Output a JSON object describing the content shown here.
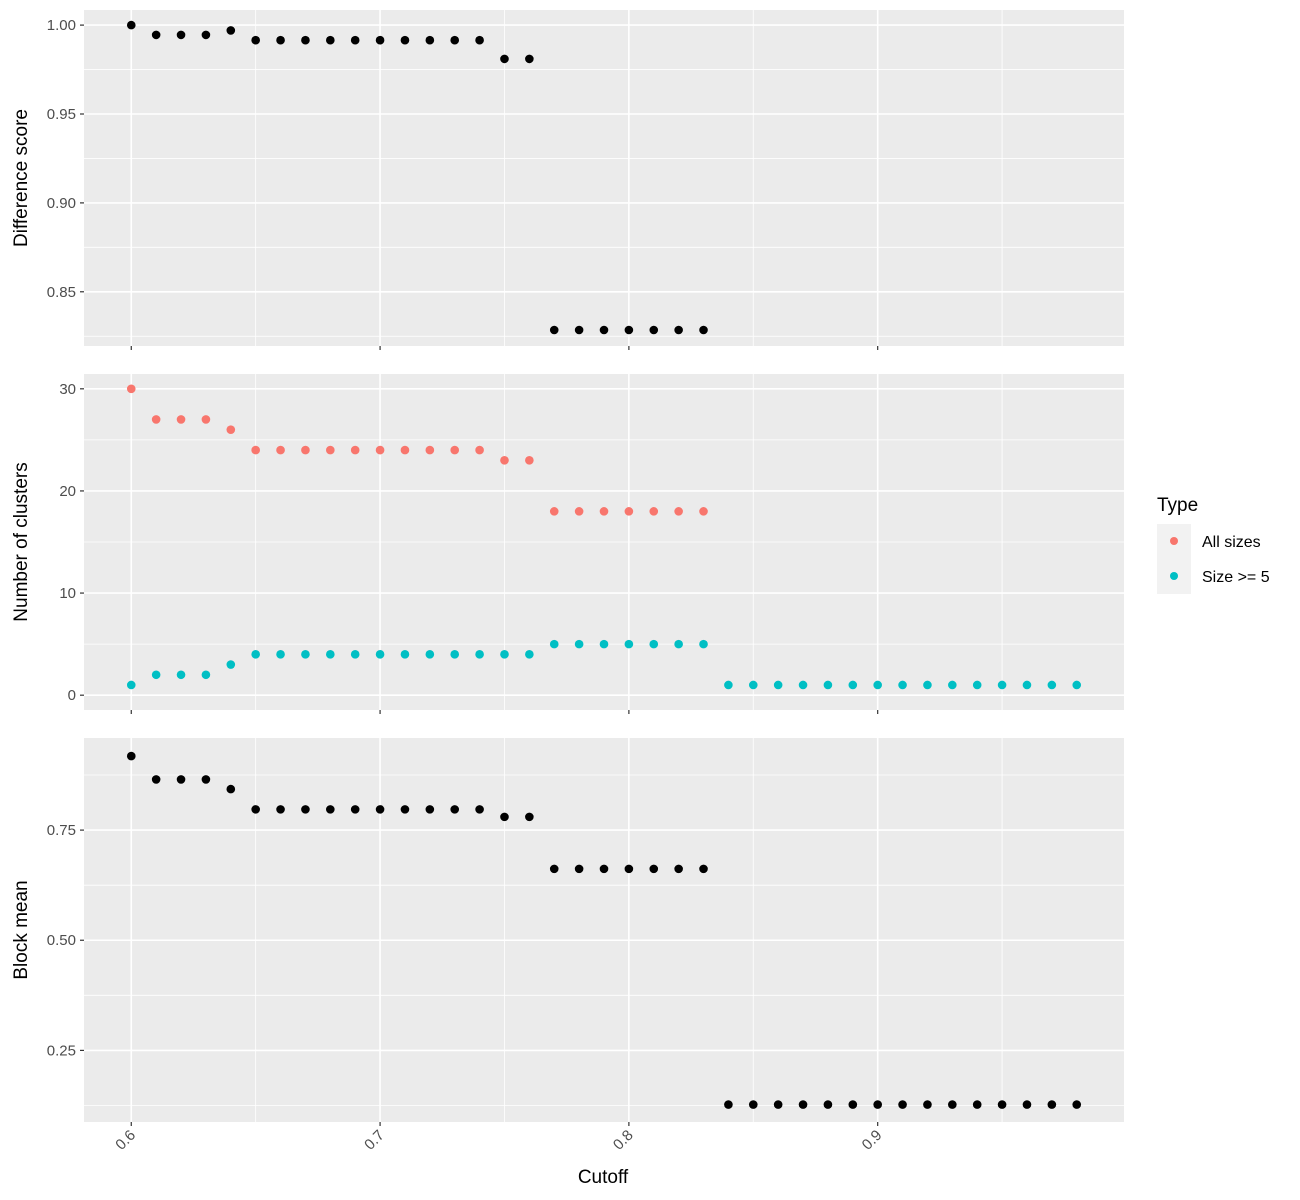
{
  "chart_data": {
    "type": "scatter",
    "xlabel": "Cutoff",
    "x_ticks": [
      0.6,
      0.7,
      0.8,
      0.9
    ],
    "x_tick_labels": [
      "0.6",
      "0.7",
      "0.8",
      "0.9"
    ],
    "xlim": [
      0.581,
      0.999
    ],
    "grid": true,
    "legend": {
      "title": "Type",
      "position": "right",
      "entries": [
        {
          "label": "All sizes",
          "color": "#F8766D"
        },
        {
          "label": "Size >= 5",
          "color": "#00BFC4"
        }
      ]
    },
    "colors": {
      "panel_bg": "#EBEBEB",
      "grid": "#FFFFFF",
      "point_default": "#000000"
    },
    "panels": [
      {
        "ylabel": "Difference score",
        "ylim": [
          0.8195,
          1.0085
        ],
        "y_ticks": [
          0.85,
          0.9,
          0.95,
          1.0
        ],
        "y_tick_labels": [
          "0.85",
          "0.90",
          "0.95",
          "1.00"
        ],
        "series": [
          {
            "color": "#000000",
            "x": [
              0.6,
              0.61,
              0.62,
              0.63,
              0.64,
              0.65,
              0.66,
              0.67,
              0.68,
              0.69,
              0.7,
              0.71,
              0.72,
              0.73,
              0.74,
              0.75,
              0.76,
              0.77,
              0.78,
              0.79,
              0.8,
              0.81,
              0.82,
              0.83
            ],
            "y": [
              1.0,
              0.9945,
              0.9945,
              0.9945,
              0.997,
              0.9915,
              0.9915,
              0.9915,
              0.9915,
              0.9915,
              0.9915,
              0.9915,
              0.9915,
              0.9915,
              0.9915,
              0.981,
              0.981,
              0.8285,
              0.8285,
              0.8285,
              0.8285,
              0.8285,
              0.8285,
              0.8285
            ]
          }
        ]
      },
      {
        "ylabel": "Number of clusters",
        "ylim": [
          -1.45,
          31.45
        ],
        "y_ticks": [
          0,
          10,
          20,
          30
        ],
        "y_tick_labels": [
          "0",
          "10",
          "20",
          "30"
        ],
        "series": [
          {
            "name": "All sizes",
            "color": "#F8766D",
            "x": [
              0.6,
              0.61,
              0.62,
              0.63,
              0.64,
              0.65,
              0.66,
              0.67,
              0.68,
              0.69,
              0.7,
              0.71,
              0.72,
              0.73,
              0.74,
              0.75,
              0.76,
              0.77,
              0.78,
              0.79,
              0.8,
              0.81,
              0.82,
              0.83
            ],
            "y": [
              30,
              27,
              27,
              27,
              26,
              24,
              24,
              24,
              24,
              24,
              24,
              24,
              24,
              24,
              24,
              23,
              23,
              18,
              18,
              18,
              18,
              18,
              18,
              18
            ]
          },
          {
            "name": "Size >= 5",
            "color": "#00BFC4",
            "x": [
              0.6,
              0.61,
              0.62,
              0.63,
              0.64,
              0.65,
              0.66,
              0.67,
              0.68,
              0.69,
              0.7,
              0.71,
              0.72,
              0.73,
              0.74,
              0.75,
              0.76,
              0.77,
              0.78,
              0.79,
              0.8,
              0.81,
              0.82,
              0.83,
              0.84,
              0.85,
              0.86,
              0.87,
              0.88,
              0.89,
              0.9,
              0.91,
              0.92,
              0.93,
              0.94,
              0.95,
              0.96,
              0.97,
              0.98
            ],
            "y": [
              1,
              2,
              2,
              2,
              3,
              4,
              4,
              4,
              4,
              4,
              4,
              4,
              4,
              4,
              4,
              4,
              4,
              5,
              5,
              5,
              5,
              5,
              5,
              5,
              1,
              1,
              1,
              1,
              1,
              1,
              1,
              1,
              1,
              1,
              1,
              1,
              1,
              1,
              1
            ]
          }
        ]
      },
      {
        "ylabel": "Block mean",
        "ylim": [
          0.0875,
          0.959
        ],
        "y_ticks": [
          0.25,
          0.5,
          0.75
        ],
        "y_tick_labels": [
          "0.25",
          "0.50",
          "0.75"
        ],
        "series": [
          {
            "color": "#000000",
            "x": [
              0.6,
              0.61,
              0.62,
              0.63,
              0.64,
              0.65,
              0.66,
              0.67,
              0.68,
              0.69,
              0.7,
              0.71,
              0.72,
              0.73,
              0.74,
              0.75,
              0.76,
              0.77,
              0.78,
              0.79,
              0.8,
              0.81,
              0.82,
              0.83,
              0.84,
              0.85,
              0.86,
              0.87,
              0.88,
              0.89,
              0.9,
              0.91,
              0.92,
              0.93,
              0.94,
              0.95,
              0.96,
              0.97,
              0.98
            ],
            "y": [
              0.918,
              0.865,
              0.865,
              0.865,
              0.843,
              0.797,
              0.797,
              0.797,
              0.797,
              0.797,
              0.797,
              0.797,
              0.797,
              0.797,
              0.797,
              0.78,
              0.78,
              0.662,
              0.662,
              0.662,
              0.662,
              0.662,
              0.662,
              0.662,
              0.127,
              0.127,
              0.127,
              0.127,
              0.127,
              0.127,
              0.127,
              0.127,
              0.127,
              0.127,
              0.127,
              0.127,
              0.127,
              0.127,
              0.127
            ]
          }
        ]
      }
    ]
  }
}
